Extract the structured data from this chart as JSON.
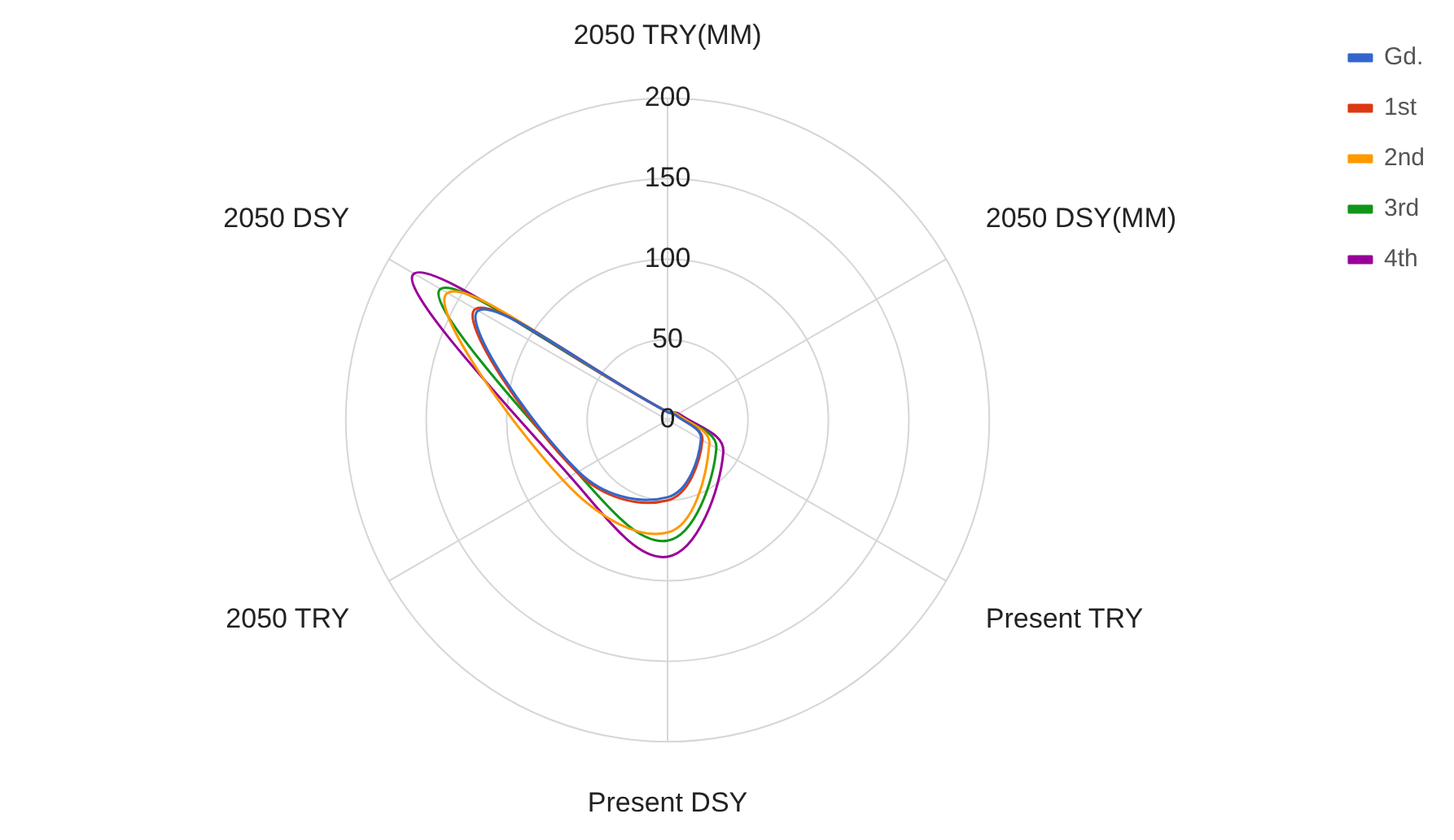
{
  "chart_data": {
    "type": "radar",
    "categories": [
      "2050 TRY(MM)",
      "2050 DSY(MM)",
      "Present TRY",
      "Present DSY",
      "2050 TRY",
      "2050 DSY"
    ],
    "series": [
      {
        "name": "Gd.",
        "color": "#3366cc",
        "values": [
          5,
          6,
          24,
          48,
          64,
          136
        ]
      },
      {
        "name": "1st",
        "color": "#dc3912",
        "values": [
          5,
          6,
          25,
          50,
          65,
          138
        ]
      },
      {
        "name": "2nd",
        "color": "#ff9900",
        "values": [
          5,
          7,
          30,
          70,
          75,
          158
        ]
      },
      {
        "name": "3rd",
        "color": "#109618",
        "values": [
          5,
          7,
          35,
          75,
          65,
          163
        ]
      },
      {
        "name": "4th",
        "color": "#990099",
        "values": [
          5,
          8,
          40,
          85,
          70,
          182
        ]
      }
    ],
    "ylim": [
      0,
      200
    ],
    "yticks": [
      0,
      50,
      100,
      150,
      200
    ],
    "grid": true,
    "legend": "top right",
    "marker": "none"
  }
}
